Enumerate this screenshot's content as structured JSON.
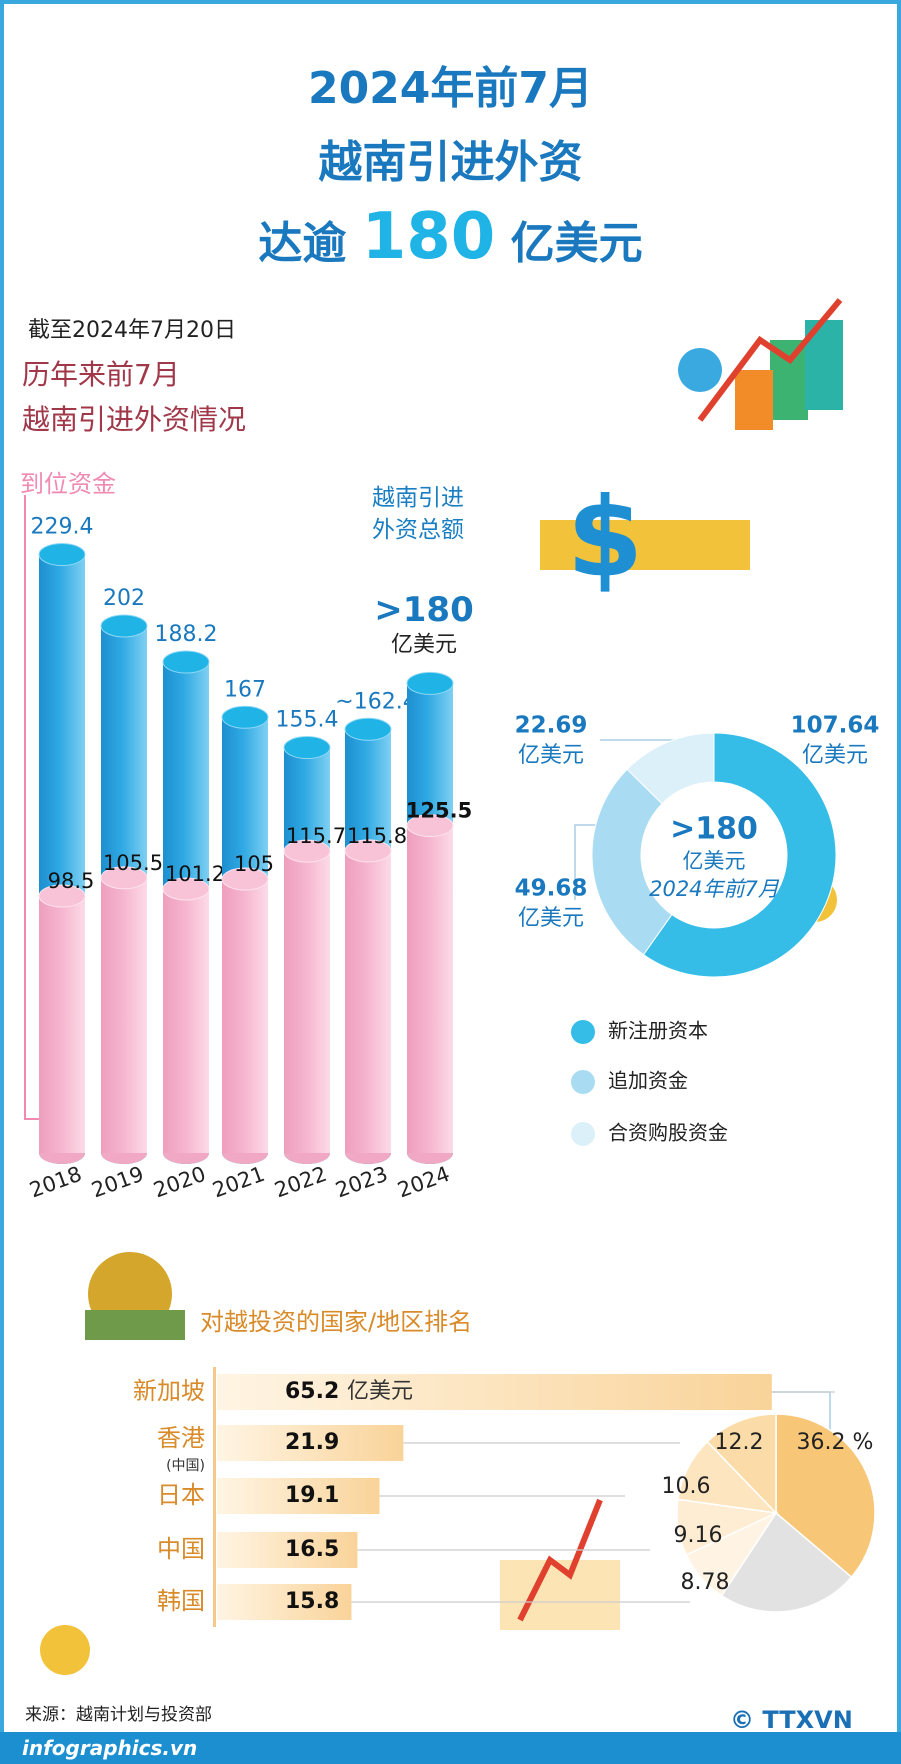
{
  "title": {
    "lines": [
      "2024年前7月",
      "越南引进外资"
    ],
    "prefix": "达逾",
    "highlight": "180",
    "suffix": "亿美元"
  },
  "date": "截至2024年7月20日",
  "chart_data": [
    {
      "type": "cylinder",
      "title": [
        "历年来前7月",
        "越南引进外资情况"
      ],
      "categories": [
        "2018",
        "2019",
        "2020",
        "2021",
        "2022",
        "2023",
        "2024"
      ],
      "unit": "亿美元",
      "series": [
        {
          "name": "越南引进外资总额",
          "color": "#2fa9e3",
          "values": [
            229.4,
            202,
            188.2,
            167,
            155.4,
            162.4,
            180
          ],
          "value_labels": [
            "229.4",
            "202",
            "188.2",
            "167",
            "155.4",
            "~162.4",
            ">180"
          ]
        },
        {
          "name": "到位资金",
          "color": "#f6b6cf",
          "values": [
            98.5,
            105.5,
            101.2,
            105,
            115.7,
            115.8,
            125.5
          ]
        }
      ]
    },
    {
      "type": "donut",
      "categories": [
        "新注册资本",
        "追加资金",
        "合资购股资金"
      ],
      "values": [
        107.64,
        49.68,
        22.69
      ],
      "colors": [
        "#35bde8",
        "#a9dcf3",
        "#dcf0fa"
      ],
      "unit": "亿美元",
      "center_text": [
        ">180",
        "亿美元",
        "2024年前7月"
      ]
    },
    {
      "type": "hbar",
      "title": "对越投资的国家/地区排名",
      "categories": [
        "新加坡",
        "香港",
        "日本",
        "中国",
        "韩国"
      ],
      "category_notes": [
        null,
        "(中国)",
        null,
        null,
        null
      ],
      "values": [
        65.2,
        21.9,
        19.1,
        16.5,
        15.8
      ],
      "unit": "亿美元"
    },
    {
      "type": "pie",
      "values": [
        36.2,
        12.2,
        10.6,
        9.16,
        8.78,
        23.06
      ],
      "value_labels": [
        "36.2 %",
        "12.2",
        "10.6",
        "9.16",
        "8.78",
        null
      ],
      "colors": [
        "#f7c777",
        "#fbdca8",
        "#fde5bf",
        "#feedd3",
        "#fff3e3",
        "#e2e2e2"
      ]
    }
  ],
  "source": "来源：越南计划与投资部",
  "footer": "infographics.vn",
  "credit": "© TTXVN"
}
